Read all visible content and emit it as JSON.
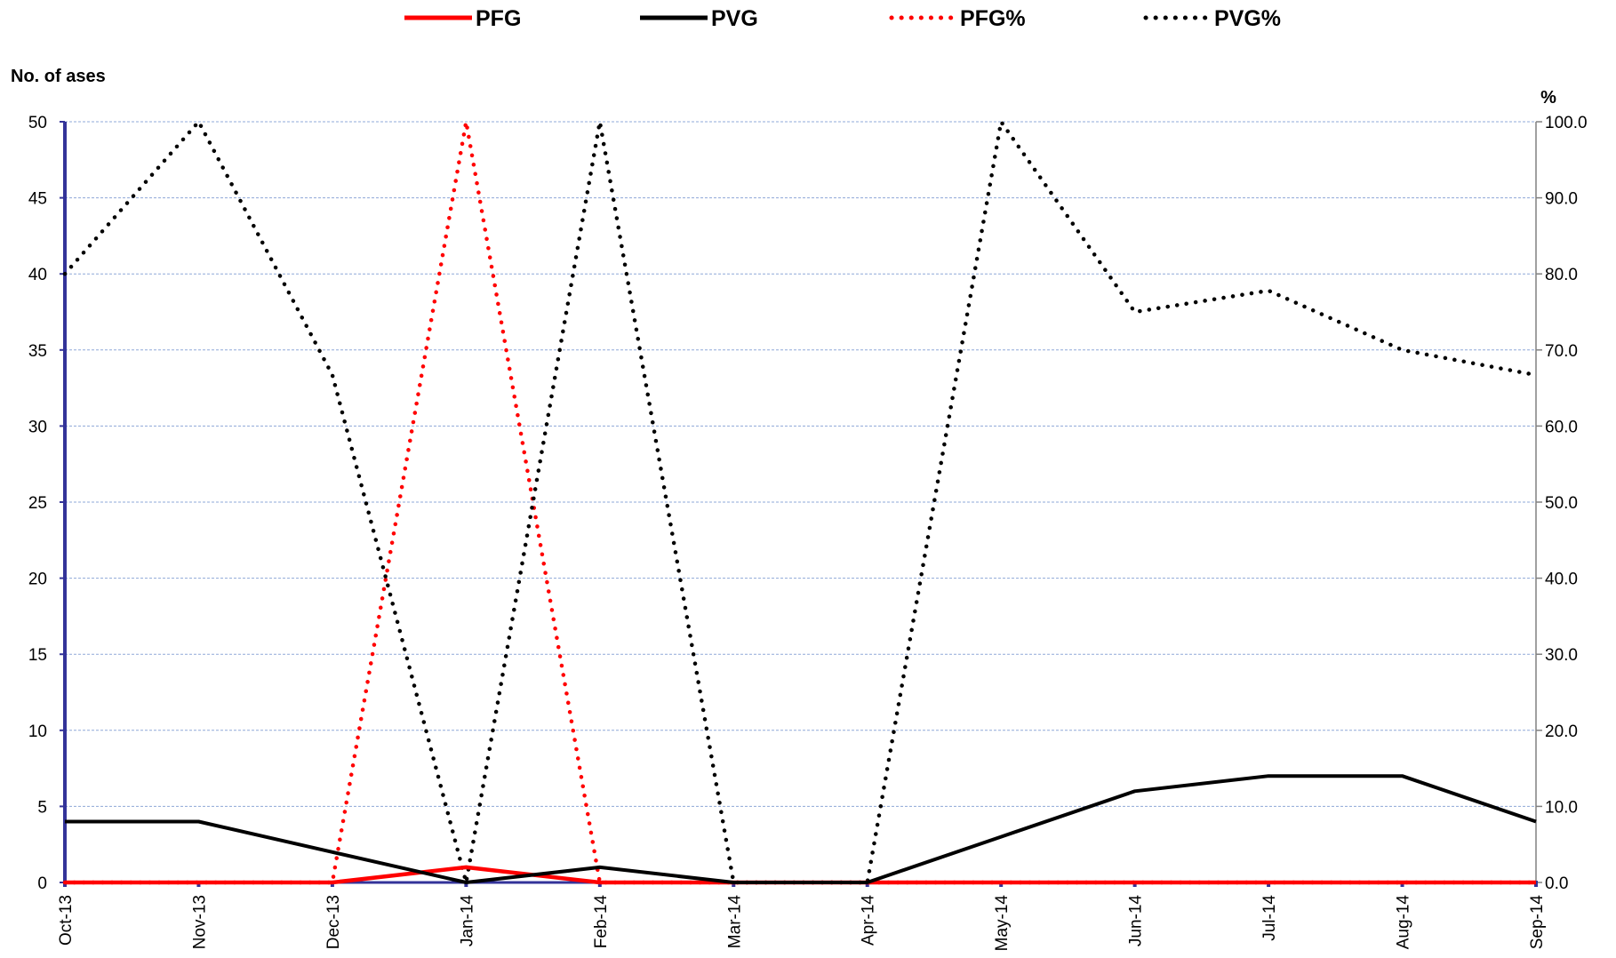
{
  "chart_data": {
    "type": "line",
    "categories": [
      "Oct-13",
      "Nov-13",
      "Dec-13",
      "Jan-14",
      "Feb-14",
      "Mar-14",
      "Apr-14",
      "May-14",
      "Jun-14",
      "Jul-14",
      "Aug-14",
      "Sep-14"
    ],
    "ylabel": "No. of ases",
    "y2label": "%",
    "ylim": [
      0,
      50
    ],
    "y2lim": [
      0,
      100
    ],
    "yticks": [
      "0",
      "5",
      "10",
      "15",
      "20",
      "25",
      "30",
      "35",
      "40",
      "45",
      "50"
    ],
    "y2ticks": [
      "0.0",
      "10.0",
      "20.0",
      "30.0",
      "40.0",
      "50.0",
      "60.0",
      "70.0",
      "80.0",
      "90.0",
      "100.0"
    ],
    "grid": true,
    "legend_position": "top",
    "series": [
      {
        "name": "PFG",
        "axis": "left",
        "style": "solid",
        "color": "#ff0000",
        "values": [
          0,
          0,
          0,
          1,
          0,
          0,
          0,
          0,
          0,
          0,
          0,
          0
        ]
      },
      {
        "name": "PVG",
        "axis": "left",
        "style": "solid",
        "color": "#000000",
        "values": [
          4,
          4,
          2,
          0,
          1,
          0,
          0,
          3,
          6,
          7,
          7,
          4
        ]
      },
      {
        "name": "PFG%",
        "axis": "right",
        "style": "dotted",
        "color": "#ff0000",
        "values": [
          0,
          0,
          0,
          100,
          0,
          0,
          0,
          0,
          0,
          0,
          0,
          0
        ]
      },
      {
        "name": "PVG%",
        "axis": "right",
        "style": "dotted",
        "color": "#000000",
        "values": [
          80,
          100,
          66.7,
          0,
          100,
          0,
          0,
          100,
          75,
          77.8,
          70,
          66.7
        ]
      }
    ]
  }
}
